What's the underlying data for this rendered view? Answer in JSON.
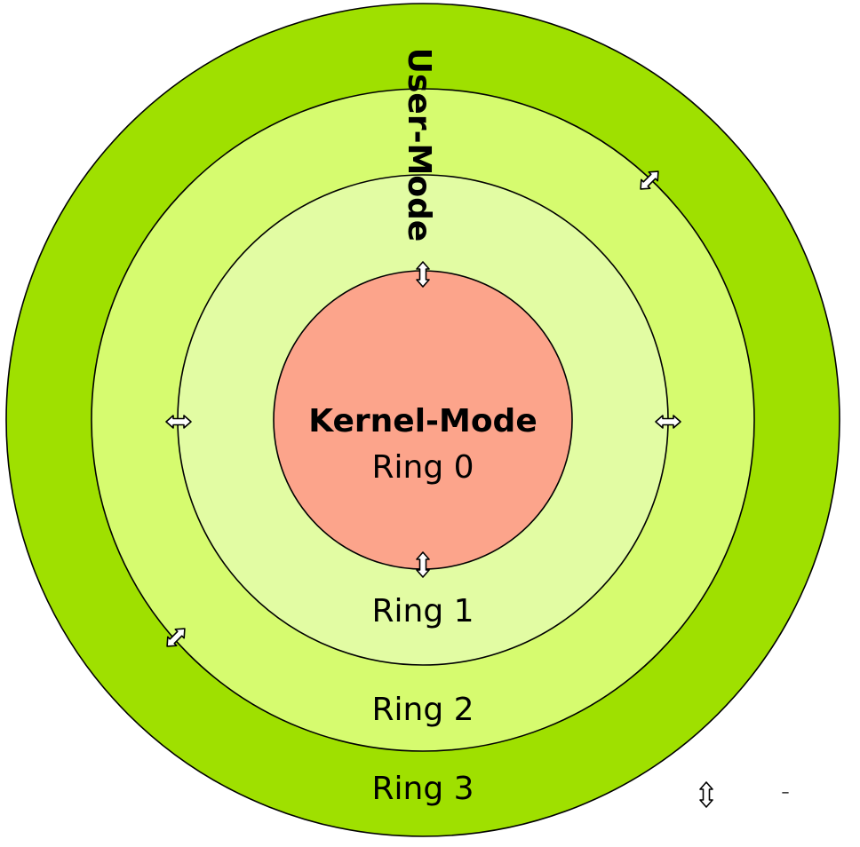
{
  "diagram": {
    "rings": [
      {
        "id": "ring-3",
        "label": "Ring 3",
        "fill": "#9fe000"
      },
      {
        "id": "ring-2",
        "label": "Ring 2",
        "fill": "#d6fb6f"
      },
      {
        "id": "ring-1",
        "label": "Ring 1",
        "fill": "#e2fca3"
      },
      {
        "id": "ring-0",
        "label": "Ring 0",
        "fill": "#fca48b"
      }
    ],
    "kernel_mode_label": "Kernel-Mode",
    "user_mode_label": "User-Mode",
    "legend_dash": "–",
    "icons": {
      "transition_arrow": "double-headed-arrow-icon"
    }
  }
}
